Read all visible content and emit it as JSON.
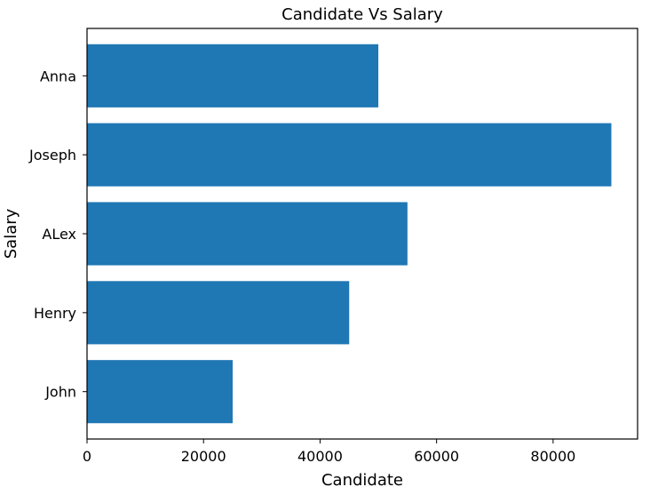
{
  "chart_data": {
    "type": "bar",
    "orientation": "horizontal",
    "title": "Candidate Vs Salary",
    "xlabel": "Candidate",
    "ylabel": "Salary",
    "categories": [
      "John",
      "Henry",
      "ALex",
      "Joseph",
      "Anna"
    ],
    "values": [
      25000,
      45000,
      55000,
      90000,
      50000
    ],
    "xlim": [
      0,
      94500
    ],
    "xticks": [
      0,
      20000,
      40000,
      60000,
      80000
    ],
    "xtick_labels": [
      "0",
      "20000",
      "40000",
      "60000",
      "80000"
    ],
    "bar_color": "#1f77b4",
    "grid": false
  }
}
